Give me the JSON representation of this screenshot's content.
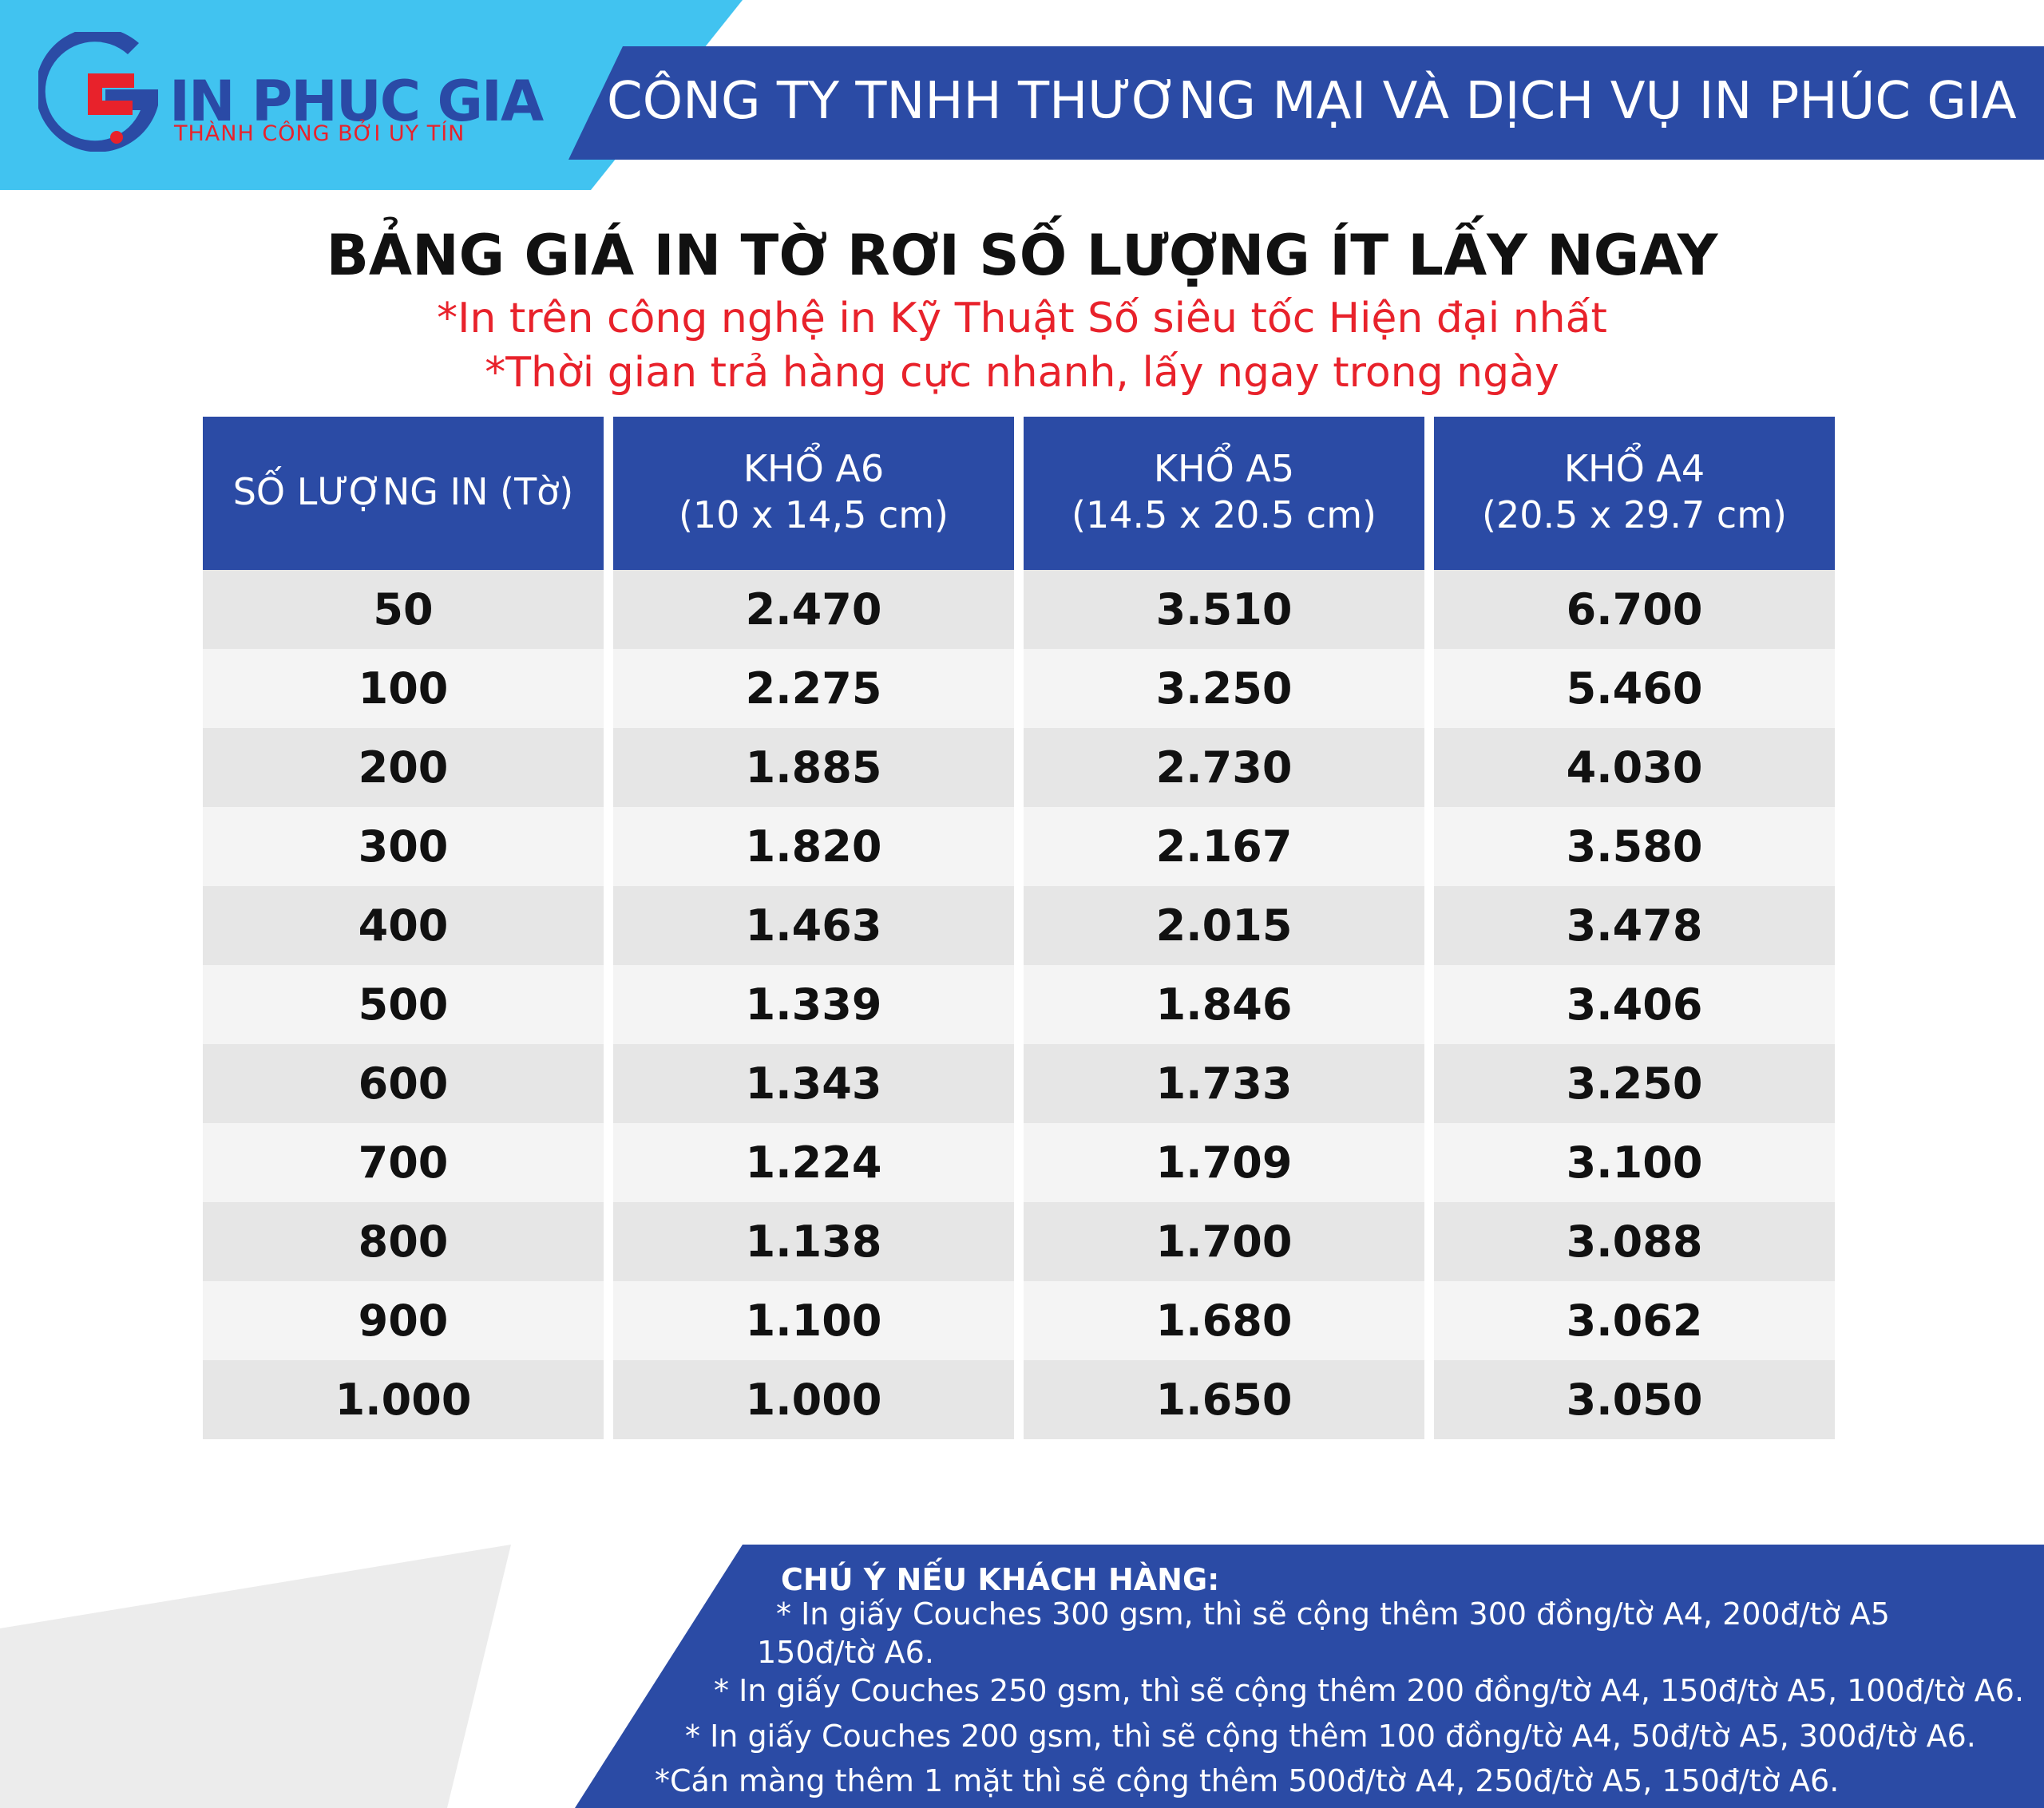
{
  "header": {
    "logo_name": "IN PHUC GIA",
    "logo_tagline": "THÀNH CÔNG BỞI UY TÍN",
    "company_name": "CÔNG TY TNHH THƯƠNG MẠI VÀ DỊCH VỤ IN PHÚC GIA"
  },
  "title": "BẢNG GIÁ IN TỜ RƠI SỐ LƯỢNG ÍT LẤY NGAY",
  "subtitles": [
    "*In trên công nghệ in Kỹ Thuật Số siêu tốc Hiện đại nhất",
    "*Thời gian trả hàng cực nhanh, lấy ngay trong ngày"
  ],
  "table": {
    "headers": [
      {
        "line1": "SỐ LƯỢNG IN (Tờ)",
        "line2": ""
      },
      {
        "line1": "KHỔ A6",
        "line2": "(10 x 14,5 cm)"
      },
      {
        "line1": "KHỔ A5",
        "line2": "(14.5 x 20.5 cm)"
      },
      {
        "line1": "KHỔ A4",
        "line2": "(20.5 x 29.7 cm)"
      }
    ],
    "rows": [
      [
        "50",
        "2.470",
        "3.510",
        "6.700"
      ],
      [
        "100",
        "2.275",
        "3.250",
        "5.460"
      ],
      [
        "200",
        "1.885",
        "2.730",
        "4.030"
      ],
      [
        "300",
        "1.820",
        "2.167",
        "3.580"
      ],
      [
        "400",
        "1.463",
        "2.015",
        "3.478"
      ],
      [
        "500",
        "1.339",
        "1.846",
        "3.406"
      ],
      [
        "600",
        "1.343",
        "1.733",
        "3.250"
      ],
      [
        "700",
        "1.224",
        "1.709",
        "3.100"
      ],
      [
        "800",
        "1.138",
        "1.700",
        "3.088"
      ],
      [
        "900",
        "1.100",
        "1.680",
        "3.062"
      ],
      [
        "1.000",
        "1.000",
        "1.650",
        "3.050"
      ]
    ]
  },
  "notes": {
    "title": "CHÚ Ý NẾU KHÁCH HÀNG:",
    "line1a": "* In giấy Couches 300 gsm, thì sẽ cộng thêm 300 đồng/tờ A4, 200đ/tờ A5",
    "line1b": "150đ/tờ A6.",
    "line2": "* In giấy Couches 250 gsm, thì sẽ cộng thêm 200 đồng/tờ A4, 150đ/tờ A5, 100đ/tờ A6.",
    "line3": "* In giấy Couches 200 gsm, thì sẽ cộng thêm 100 đồng/tờ A4, 50đ/tờ A5, 300đ/tờ A6.",
    "line4": "*Cán màng thêm 1 mặt thì sẽ cộng thêm 500đ/tờ A4, 250đ/tờ A5, 150đ/tờ A6."
  },
  "colors": {
    "brand_blue": "#2b4ba5",
    "light_blue": "#41c3f0",
    "accent_red": "#e8222b"
  }
}
